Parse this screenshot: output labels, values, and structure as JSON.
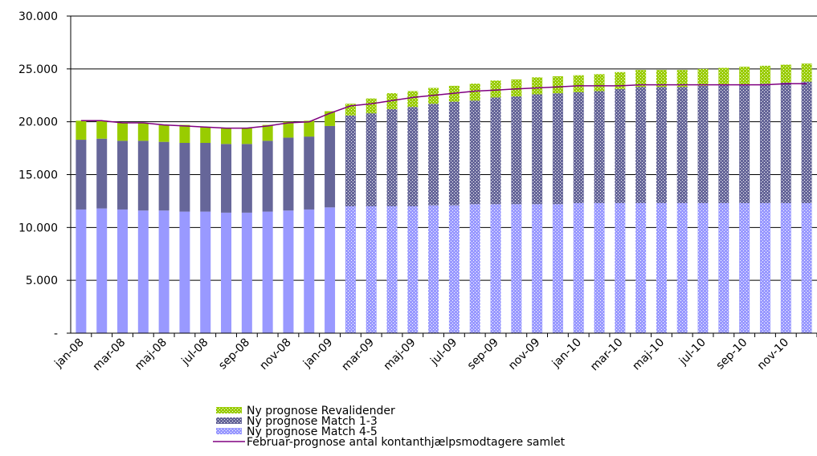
{
  "chart_data": {
    "type": "stacked-bar-line",
    "categories": [
      "jan-08",
      null,
      "mar-08",
      null,
      "maj-08",
      null,
      "jul-08",
      null,
      "sep-08",
      null,
      "nov-08",
      null,
      "jan-09",
      null,
      "mar-09",
      null,
      "maj-09",
      null,
      "jul-09",
      null,
      "sep-09",
      null,
      "nov-09",
      null,
      "jan-10",
      null,
      "mar-10",
      null,
      "maj-10",
      null,
      "jul-10",
      null,
      "sep-10",
      null,
      "nov-10",
      null
    ],
    "series": [
      {
        "name": "Ny prognose Revalidender",
        "color": "#99cc00",
        "values": [
          1800,
          1700,
          1700,
          1700,
          1600,
          1700,
          1500,
          1500,
          1500,
          1500,
          1500,
          1500,
          1400,
          1100,
          1400,
          1500,
          1500,
          1500,
          1500,
          1600,
          1600,
          1600,
          1600,
          1600,
          1600,
          1600,
          1600,
          1600,
          1600,
          1600,
          1600,
          1600,
          1700,
          1700,
          1700,
          1700
        ]
      },
      {
        "name": "Ny prognose Match 1-3",
        "color": "#666699",
        "values": [
          6600,
          6600,
          6500,
          6600,
          6500,
          6500,
          6500,
          6500,
          6500,
          6700,
          6900,
          6900,
          7700,
          8600,
          8800,
          9200,
          9400,
          9600,
          9800,
          9800,
          10100,
          10200,
          10400,
          10500,
          10500,
          10600,
          10800,
          11000,
          11000,
          11000,
          11100,
          11200,
          11200,
          11300,
          11400,
          11500
        ]
      },
      {
        "name": "Ny prognose Match 4-5",
        "color": "#9999ff",
        "values": [
          11700,
          11800,
          11700,
          11600,
          11600,
          11500,
          11500,
          11400,
          11400,
          11500,
          11600,
          11700,
          11900,
          12000,
          12000,
          12000,
          12000,
          12100,
          12100,
          12200,
          12200,
          12200,
          12200,
          12200,
          12300,
          12300,
          12300,
          12300,
          12300,
          12300,
          12300,
          12300,
          12300,
          12300,
          12300,
          12300
        ]
      },
      {
        "name": "Februar-prognose antal kontanthjælpsmodtagere samlet",
        "color": "#800080",
        "kind": "line",
        "values": [
          20100,
          20100,
          19900,
          19900,
          19700,
          19600,
          19500,
          19400,
          19400,
          19600,
          19900,
          20000,
          20800,
          21500,
          21700,
          22000,
          22300,
          22500,
          22700,
          22900,
          23000,
          23100,
          23200,
          23300,
          23400,
          23400,
          23400,
          23500,
          23500,
          23500,
          23500,
          23500,
          23500,
          23500,
          23600,
          23600
        ]
      }
    ],
    "ylim": [
      0,
      30000
    ],
    "yticks": [
      {
        "value": 0,
        "label": "-"
      },
      {
        "value": 5000,
        "label": "5.000"
      },
      {
        "value": 10000,
        "label": "10.000"
      },
      {
        "value": 15000,
        "label": "15.000"
      },
      {
        "value": 20000,
        "label": "20.000"
      },
      {
        "value": 25000,
        "label": "25.000"
      },
      {
        "value": 30000,
        "label": "30.000"
      }
    ],
    "grid": true
  }
}
